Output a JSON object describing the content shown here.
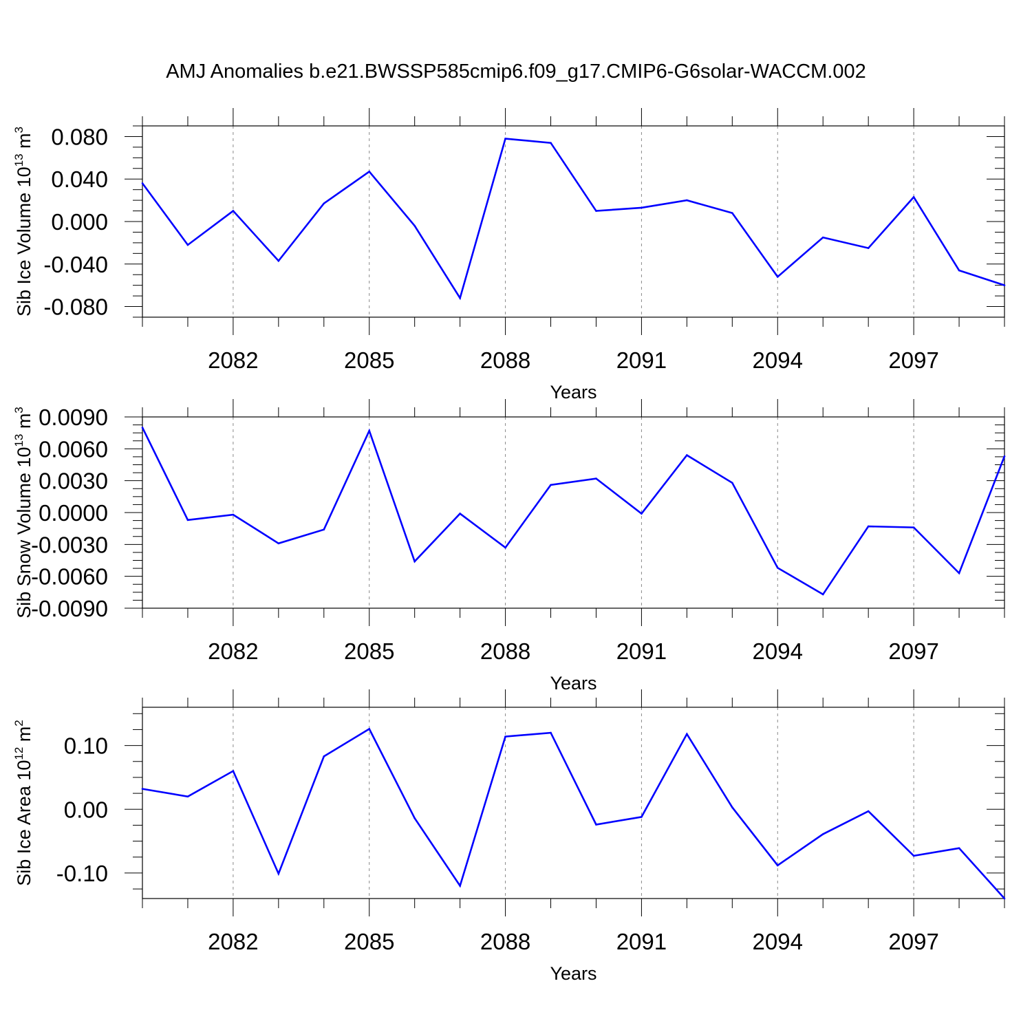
{
  "title": "AMJ Anomalies b.e21.BWSSP585cmip6.f09_g17.CMIP6-G6solar-WACCM.002",
  "line_color": "#0000ff",
  "chart_data": [
    {
      "type": "line",
      "title": "",
      "xlabel": "Years",
      "ylabel": {
        "text": "Sib Ice Volume 10",
        "exp": "13",
        "unit": " m",
        "unit_exp": "3"
      },
      "x": [
        2080,
        2081,
        2082,
        2083,
        2084,
        2085,
        2086,
        2087,
        2088,
        2089,
        2090,
        2091,
        2092,
        2093,
        2094,
        2095,
        2096,
        2097,
        2098,
        2099
      ],
      "series": [
        {
          "values": [
            0.036,
            -0.022,
            0.01,
            -0.037,
            0.017,
            0.047,
            -0.004,
            -0.072,
            0.078,
            0.074,
            0.01,
            0.013,
            0.02,
            0.008,
            -0.052,
            -0.015,
            -0.025,
            0.023,
            -0.046,
            -0.06
          ]
        }
      ],
      "xlim": [
        2080,
        2099
      ],
      "ylim": [
        -0.09,
        0.09
      ],
      "yticks": [
        0.08,
        0.04,
        0.0,
        -0.04,
        -0.08
      ],
      "ytick_labels": [
        "0.080",
        "0.040",
        "0.000",
        "-0.040",
        "-0.080"
      ],
      "xticks": [
        2082,
        2085,
        2088,
        2091,
        2094,
        2097
      ],
      "xtick_labels": [
        "2082",
        "2085",
        "2088",
        "2091",
        "2094",
        "2097"
      ],
      "grid": "dashed vertical at labeled years"
    },
    {
      "type": "line",
      "title": "",
      "xlabel": "Years",
      "ylabel": {
        "text": "Sib Snow Volume 10",
        "exp": "13",
        "unit": " m",
        "unit_exp": "3"
      },
      "x": [
        2080,
        2081,
        2082,
        2083,
        2084,
        2085,
        2086,
        2087,
        2088,
        2089,
        2090,
        2091,
        2092,
        2093,
        2094,
        2095,
        2096,
        2097,
        2098,
        2099
      ],
      "series": [
        {
          "values": [
            0.008,
            -0.0007,
            -0.0002,
            -0.0029,
            -0.0016,
            0.0077,
            -0.0046,
            -0.0001,
            -0.0033,
            0.0026,
            0.0032,
            -0.0001,
            0.0054,
            0.0028,
            -0.0052,
            -0.0077,
            -0.0013,
            -0.0014,
            -0.0057,
            0.0053
          ]
        }
      ],
      "xlim": [
        2080,
        2099
      ],
      "ylim": [
        -0.009,
        0.009
      ],
      "yticks": [
        0.009,
        0.006,
        0.003,
        0.0,
        -0.003,
        -0.006,
        -0.009
      ],
      "ytick_labels": [
        "0.0090",
        "0.0060",
        "0.0030",
        "0.0000",
        "-0.0030",
        "-0.0060",
        "-0.0090"
      ],
      "xticks": [
        2082,
        2085,
        2088,
        2091,
        2094,
        2097
      ],
      "xtick_labels": [
        "2082",
        "2085",
        "2088",
        "2091",
        "2094",
        "2097"
      ],
      "grid": "dashed vertical at labeled years"
    },
    {
      "type": "line",
      "title": "",
      "xlabel": "Years",
      "ylabel": {
        "text": "Sib Ice Area 10",
        "exp": "12",
        "unit": " m",
        "unit_exp": "2"
      },
      "x": [
        2080,
        2081,
        2082,
        2083,
        2084,
        2085,
        2086,
        2087,
        2088,
        2089,
        2090,
        2091,
        2092,
        2093,
        2094,
        2095,
        2096,
        2097,
        2098,
        2099
      ],
      "series": [
        {
          "values": [
            0.032,
            0.02,
            0.06,
            -0.101,
            0.083,
            0.126,
            -0.014,
            -0.12,
            0.114,
            0.12,
            -0.024,
            -0.012,
            0.118,
            0.003,
            -0.088,
            -0.039,
            -0.003,
            -0.073,
            -0.061,
            -0.14
          ]
        }
      ],
      "xlim": [
        2080,
        2099
      ],
      "ylim": [
        -0.14,
        0.16
      ],
      "yticks": [
        0.1,
        0.0,
        -0.1
      ],
      "ytick_labels": [
        "0.10",
        "0.00",
        "-0.10"
      ],
      "xticks": [
        2082,
        2085,
        2088,
        2091,
        2094,
        2097
      ],
      "xtick_labels": [
        "2082",
        "2085",
        "2088",
        "2091",
        "2094",
        "2097"
      ],
      "grid": "dashed vertical at labeled years"
    }
  ]
}
